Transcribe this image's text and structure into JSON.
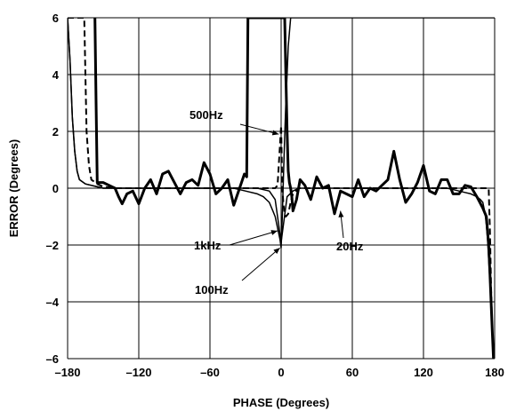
{
  "chart_data": {
    "type": "line",
    "title": "",
    "xlabel": "PHASE (Degrees)",
    "ylabel": "ERROR (Degrees)",
    "xlim": [
      -180,
      180
    ],
    "ylim": [
      -6,
      6
    ],
    "xticks": [
      -180,
      -120,
      -60,
      0,
      60,
      120,
      180
    ],
    "xtick_labels": [
      "–180",
      "–120",
      "–60",
      "0",
      "60",
      "120",
      "180"
    ],
    "yticks": [
      -6,
      -4,
      -2,
      0,
      2,
      4,
      6
    ],
    "ytick_labels": [
      "–6",
      "–4",
      "–2",
      "0",
      "2",
      "4",
      "6"
    ],
    "grid": true,
    "series": [
      {
        "name": "20Hz",
        "style": "solid-thick",
        "color": "#000000",
        "x": [
          -157,
          -156,
          -155,
          -150,
          -145,
          -140,
          -137,
          -134,
          -130,
          -125,
          -120,
          -115,
          -110,
          -105,
          -100,
          -95,
          -90,
          -85,
          -80,
          -75,
          -70,
          -65,
          -60,
          -55,
          -50,
          -45,
          -40,
          -35,
          -31,
          -29,
          -28,
          -27.8,
          -20,
          -10,
          -5,
          -3,
          -2,
          -1.5,
          0,
          1,
          2,
          3,
          4,
          5,
          6,
          7,
          8,
          9,
          10,
          13,
          16,
          20,
          25,
          30,
          35,
          40,
          45,
          50,
          55,
          60,
          65,
          70,
          75,
          80,
          85,
          90,
          95,
          100,
          105,
          110,
          115,
          120,
          125,
          130,
          135,
          140,
          145,
          150,
          155,
          160,
          165,
          170,
          173,
          175,
          176,
          177,
          178,
          179,
          180
        ],
        "y": [
          6,
          3,
          0.2,
          0.2,
          0.1,
          0,
          -0.3,
          -0.55,
          -0.2,
          -0.1,
          -0.55,
          0,
          0.3,
          -0.2,
          0.5,
          0.6,
          0.2,
          -0.2,
          0.2,
          0.3,
          0.1,
          0.9,
          0.5,
          -0.2,
          0,
          0.3,
          -0.6,
          0,
          0.5,
          0.4,
          6,
          6,
          6,
          6,
          6,
          6,
          6,
          6,
          6,
          6,
          6,
          6,
          4,
          2,
          0.6,
          0.2,
          0,
          -0.3,
          -0.8,
          -0.4,
          0.3,
          0.1,
          -0.4,
          0.4,
          0,
          0.1,
          -0.9,
          -0.1,
          -0.2,
          -0.3,
          0.3,
          -0.3,
          0,
          -0.1,
          0.1,
          0.3,
          1.3,
          0.3,
          -0.5,
          -0.2,
          0.2,
          0.8,
          -0.1,
          -0.2,
          0.3,
          0.3,
          -0.2,
          -0.2,
          0.1,
          0.05,
          -0.3,
          -0.7,
          -1,
          -2,
          -3,
          -4,
          -5,
          -6,
          -6
        ]
      },
      {
        "name": "100Hz",
        "style": "solid-thin",
        "color": "#000000",
        "x": [
          -180,
          -178,
          -176,
          -174,
          -172,
          -170,
          -165,
          -160,
          -155,
          -150,
          -130,
          -100,
          -80,
          -60,
          -40,
          -30,
          -20,
          -15,
          -10,
          -7,
          -5,
          -3,
          -1,
          0,
          1,
          2,
          3,
          4,
          5,
          6,
          8,
          10,
          15,
          20,
          40,
          60,
          80,
          100,
          120,
          140,
          150,
          155,
          160,
          165,
          170,
          172,
          174,
          176,
          177,
          178,
          179,
          180
        ],
        "y": [
          6,
          4.5,
          2.5,
          1.3,
          0.6,
          0.3,
          0.15,
          0.1,
          0.05,
          0,
          0,
          0,
          0,
          0,
          0,
          -0.1,
          -0.2,
          -0.3,
          -0.5,
          -0.8,
          -1,
          -1.4,
          -1.8,
          -2.1,
          -1,
          0.5,
          1.8,
          3,
          4,
          5,
          6,
          6,
          6,
          6,
          6,
          6,
          6,
          6,
          6,
          6,
          6,
          6,
          6,
          6,
          6,
          6,
          6,
          6,
          6,
          6,
          6,
          6
        ]
      },
      {
        "name": "1kHz",
        "style": "solid-thin",
        "color": "#000000",
        "x": [
          -180,
          -178,
          -176,
          -174,
          -172,
          -170,
          -165,
          -160,
          -155,
          -150,
          -130,
          -100,
          -80,
          -60,
          -40,
          -20,
          -10,
          -5,
          0,
          5,
          10,
          15,
          20,
          40,
          60,
          80,
          100,
          120,
          140,
          150,
          155,
          160,
          165,
          168,
          170,
          171,
          172,
          173,
          174,
          175,
          176,
          177,
          178,
          179,
          180
        ],
        "y": [
          6,
          4.5,
          2.5,
          1.3,
          0.6,
          0.3,
          0.15,
          0.1,
          0.05,
          0,
          0,
          0,
          0,
          0,
          0,
          0,
          -0.1,
          -0.4,
          -1.9,
          -0.3,
          -0.1,
          0,
          0,
          0,
          0,
          0,
          0,
          0,
          0,
          -0.1,
          -0.15,
          -0.2,
          -0.3,
          -0.4,
          -0.5,
          -0.7,
          -0.9,
          -1.3,
          -1.8,
          -2.5,
          -3.3,
          -4.2,
          -5,
          -5.7,
          -6
        ]
      },
      {
        "name": "500Hz",
        "style": "dashed",
        "color": "#000000",
        "x": [
          -180,
          -170,
          -166,
          -165,
          -164,
          -162,
          -160,
          -155,
          -150,
          -140,
          -120,
          -100,
          -80,
          -60,
          -40,
          -20,
          -10,
          -5,
          -3,
          0,
          0.5,
          1,
          2,
          3,
          4,
          6,
          8,
          10,
          15,
          20,
          40,
          60,
          80,
          100,
          120,
          140,
          150,
          160,
          170,
          175,
          176,
          177,
          178,
          179,
          180
        ],
        "y": [
          6,
          6,
          6,
          4,
          2,
          0.8,
          0.3,
          0.15,
          0.05,
          0,
          0,
          0,
          0,
          0,
          0,
          0,
          0,
          0,
          0.1,
          2.2,
          1,
          0,
          -0.6,
          -0.9,
          -1,
          -0.9,
          -0.5,
          -0.2,
          0,
          0,
          0,
          0,
          0,
          0,
          0,
          0,
          0,
          0,
          0,
          0,
          -1.5,
          -3.5,
          -5,
          -6,
          -6
        ]
      }
    ],
    "annotations": [
      {
        "text": "500Hz",
        "target_x": -2,
        "target_y": 1.9
      },
      {
        "text": "1kHz",
        "target_x": -3,
        "target_y": -1.5
      },
      {
        "text": "100Hz",
        "target_x": -1,
        "target_y": -2.1
      },
      {
        "text": "20Hz",
        "target_x": 50,
        "target_y": -0.8
      }
    ]
  }
}
